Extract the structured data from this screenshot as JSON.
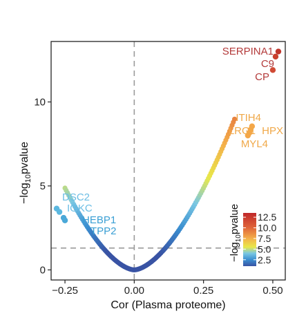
{
  "chart_data": {
    "type": "scatter",
    "title": "",
    "xlabel": "Cor (Plasma proteome)",
    "ylabel": {
      "prefix": "−log",
      "sub": "10",
      "suffix": "pvalue"
    },
    "xlim": [
      -0.3,
      0.545
    ],
    "ylim": [
      -0.6,
      13.6
    ],
    "x_ticks": [
      -0.25,
      0,
      0.25,
      0.5
    ],
    "x_tick_labels": [
      "−0.25",
      "0.00",
      "0.25",
      "0.50"
    ],
    "y_ticks": [
      0,
      5,
      10
    ],
    "y_tick_labels": [
      "0",
      "5",
      "10"
    ],
    "grid": false,
    "reference_lines": {
      "vertical_x": 0,
      "horizontal_y": 1.3,
      "style": "dashed"
    },
    "curve": {
      "x_min": -0.25,
      "x_max": 0.365,
      "step": 0.0045,
      "y_coef": 48,
      "y_exp": 1.65
    },
    "highlighted_points": [
      {
        "label": "SERPINA1",
        "x": 0.52,
        "y": 13.0,
        "label_color": "#b33a3a",
        "point_color": "#c0362c"
      },
      {
        "label": "C9",
        "x": 0.51,
        "y": 12.7,
        "label_color": "#b33a3a",
        "point_color": "#c9402e"
      },
      {
        "label": "CP",
        "x": 0.5,
        "y": 11.9,
        "label_color": "#b33a3a",
        "point_color": "#d04a35"
      },
      {
        "label": "ITIH4",
        "x": 0.425,
        "y": 8.55,
        "label_color": "#f0a848",
        "point_color": "#f4a748"
      },
      {
        "label": "LRG1",
        "x": 0.42,
        "y": 8.35,
        "label_color": "#f0a848",
        "point_color": "#f4a748"
      },
      {
        "label": "HPX",
        "x": 0.415,
        "y": 8.15,
        "label_color": "#f0a848",
        "point_color": "#f4a748"
      },
      {
        "label": "MYL4",
        "x": 0.41,
        "y": 8.0,
        "label_color": "#f0a848",
        "point_color": "#f4a748"
      },
      {
        "label": "DSC2",
        "x": -0.28,
        "y": 3.65,
        "label_color": "#6bbde4",
        "point_color": "#5cb8e0"
      },
      {
        "label": "IGKC",
        "x": -0.27,
        "y": 3.45,
        "label_color": "#6bbde4",
        "point_color": "#5cb8e0"
      },
      {
        "label": "HEBP1",
        "x": -0.255,
        "y": 3.1,
        "label_color": "#3a9fd4",
        "point_color": "#4aa8d8"
      },
      {
        "label": "TPP2",
        "x": -0.25,
        "y": 2.95,
        "label_color": "#3a9fd4",
        "point_color": "#4aa8d8"
      }
    ],
    "legend": {
      "title": {
        "prefix": "−log",
        "sub": "10",
        "suffix": "pvalue"
      },
      "placement": "bottom-right",
      "range": [
        1.0,
        13.5
      ],
      "ticks": [
        2.5,
        5.0,
        7.5,
        10.0,
        12.5
      ],
      "tick_labels": [
        "2.5",
        "5.0",
        "7.5",
        "10.0",
        "12.5"
      ],
      "color_stops": [
        {
          "value": 1.0,
          "color": "#3953a4"
        },
        {
          "value": 2.5,
          "color": "#3a8ed0"
        },
        {
          "value": 4.0,
          "color": "#79c7e3"
        },
        {
          "value": 5.5,
          "color": "#e8e84a"
        },
        {
          "value": 7.5,
          "color": "#f4b04a"
        },
        {
          "value": 10.0,
          "color": "#e0663a"
        },
        {
          "value": 13.5,
          "color": "#c0282a"
        }
      ]
    }
  }
}
